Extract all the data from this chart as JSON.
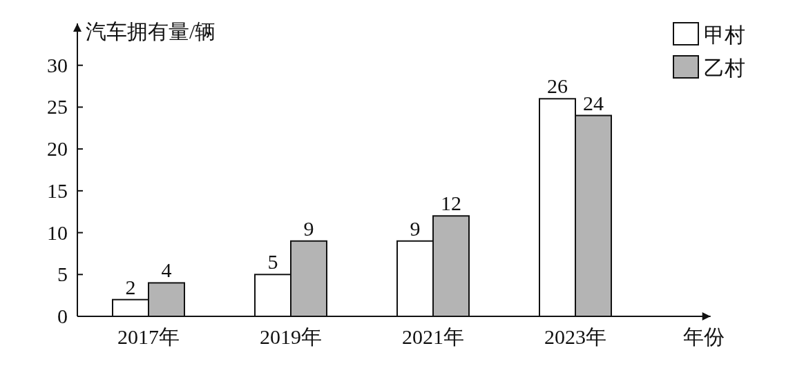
{
  "chart_data": {
    "type": "bar",
    "ylabel": "汽车拥有量/辆",
    "xlabel": "年份",
    "categories": [
      "2017年",
      "2019年",
      "2021年",
      "2023年"
    ],
    "series": [
      {
        "name": "甲村",
        "color": "#ffffff",
        "values": [
          2,
          5,
          9,
          26
        ]
      },
      {
        "name": "乙村",
        "color": "#b4b4b4",
        "values": [
          4,
          9,
          12,
          24
        ]
      }
    ],
    "ylim": [
      0,
      35
    ],
    "yticks": [
      0,
      5,
      10,
      15,
      20,
      25,
      30
    ],
    "data_labels": true,
    "legend": "top right",
    "grid": false
  }
}
